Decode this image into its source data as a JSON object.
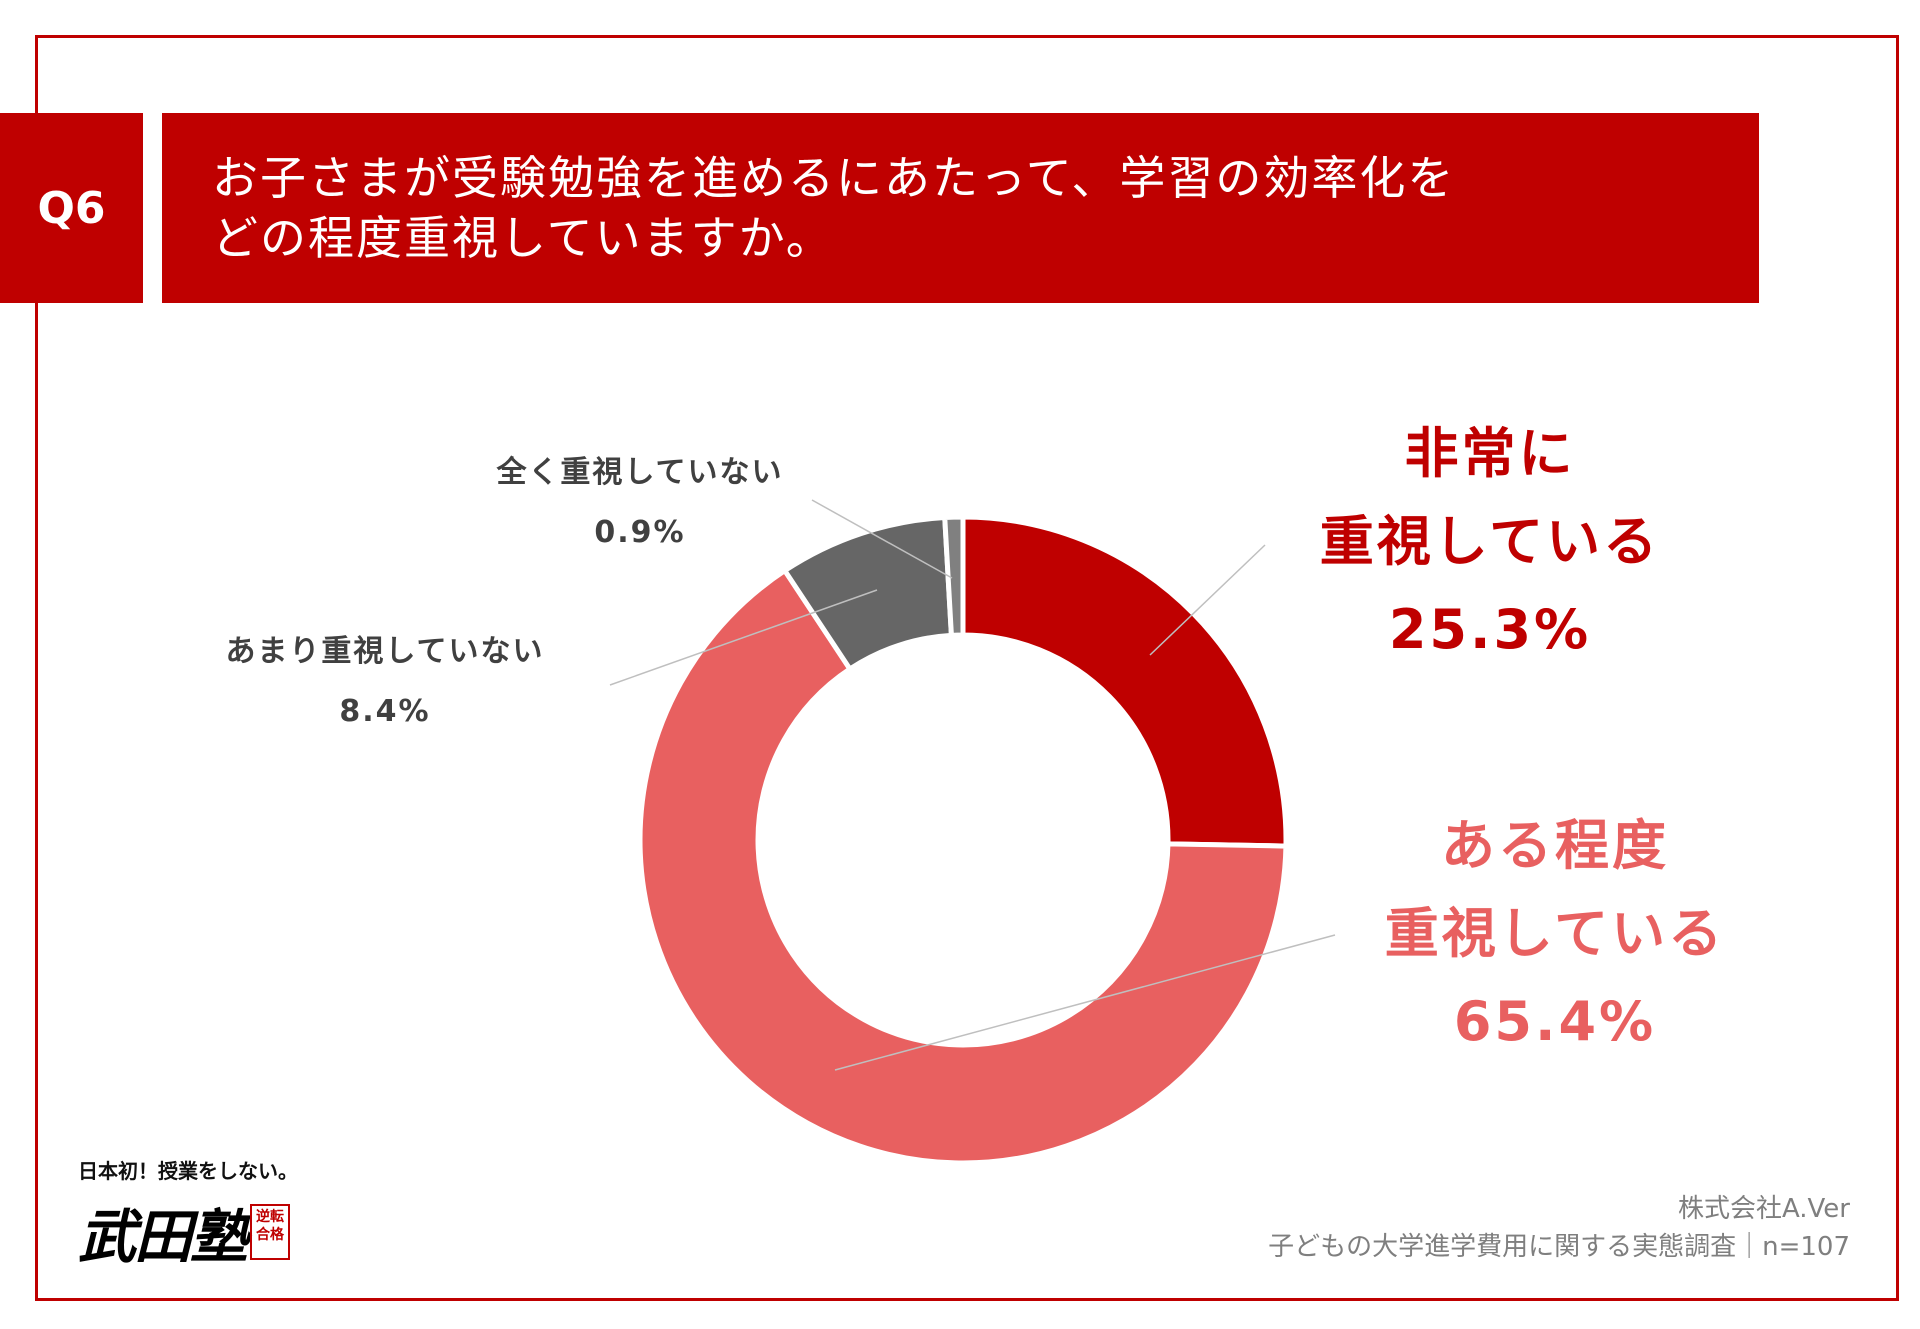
{
  "question": {
    "badge": "Q6",
    "line1": "お子さまが受験勉強を進めるにあたって、学習の効率化を",
    "line2": "どの程度重視していますか。"
  },
  "chart_data": {
    "type": "pie",
    "donut": true,
    "title": "",
    "slices": [
      {
        "name": "非常に重視している",
        "value": 25.3,
        "color": "#bf0000"
      },
      {
        "name": "ある程度重視している",
        "value": 65.4,
        "color": "#e86060"
      },
      {
        "name": "あまり重視していない",
        "value": 8.4,
        "color": "#666666"
      },
      {
        "name": "全く重視していない",
        "value": 0.9,
        "color": "#808080"
      }
    ]
  },
  "labels": {
    "very": {
      "line1": "非常に",
      "line2": "重視している",
      "pct": "25.3%"
    },
    "some": {
      "line1": "ある程度",
      "line2": "重視している",
      "pct": "65.4%"
    },
    "little": {
      "line1": "あまり重視していない",
      "pct": "8.4%"
    },
    "none": {
      "line1": "全く重視していない",
      "pct": "0.9%"
    }
  },
  "source": {
    "company": "株式会社A.Ver",
    "survey": "子どもの大学進学費用に関する実態調査｜n=107"
  },
  "logo": {
    "tagline": "日本初！授業をしない。",
    "name": "武田塾",
    "stamp": "逆転合格"
  }
}
